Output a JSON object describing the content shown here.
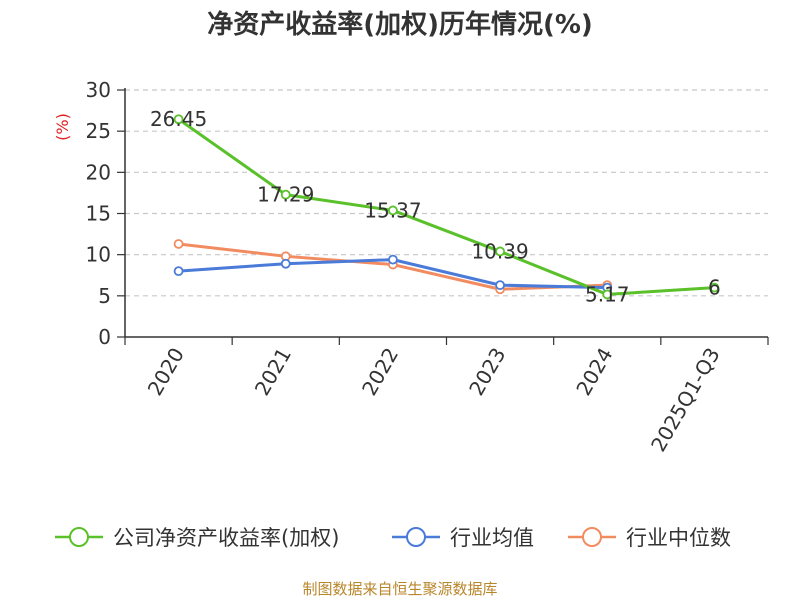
{
  "title": "净资产收益率(加权)历年情况(%)",
  "source": "制图数据来自恒生聚源数据库",
  "chart_data": {
    "type": "line",
    "title": "净资产收益率(加权)历年情况(%)",
    "ylabel": "(%)",
    "xlabel": "",
    "ylim": [
      0,
      30
    ],
    "yticks": [
      0,
      5,
      10,
      15,
      20,
      25,
      30
    ],
    "grid": true,
    "legend_position": "bottom",
    "categories": [
      "2020",
      "2021",
      "2022",
      "2023",
      "2024",
      "2025Q1-Q3"
    ],
    "series": [
      {
        "name": "公司净资产收益率(加权)",
        "color": "#5ac12a",
        "values": [
          26.45,
          17.29,
          15.37,
          10.39,
          5.17,
          6
        ],
        "labels": [
          "26.45",
          "17.29",
          "15.37",
          "10.39",
          "5.17",
          "6"
        ]
      },
      {
        "name": "行业均值",
        "color": "#4a7bd9",
        "values": [
          8,
          8.9,
          9.4,
          6.3,
          6.0,
          null
        ],
        "labels": []
      },
      {
        "name": "行业中位数",
        "color": "#f28c60",
        "values": [
          11.3,
          9.8,
          8.8,
          5.8,
          6.3,
          null
        ],
        "labels": []
      }
    ]
  }
}
